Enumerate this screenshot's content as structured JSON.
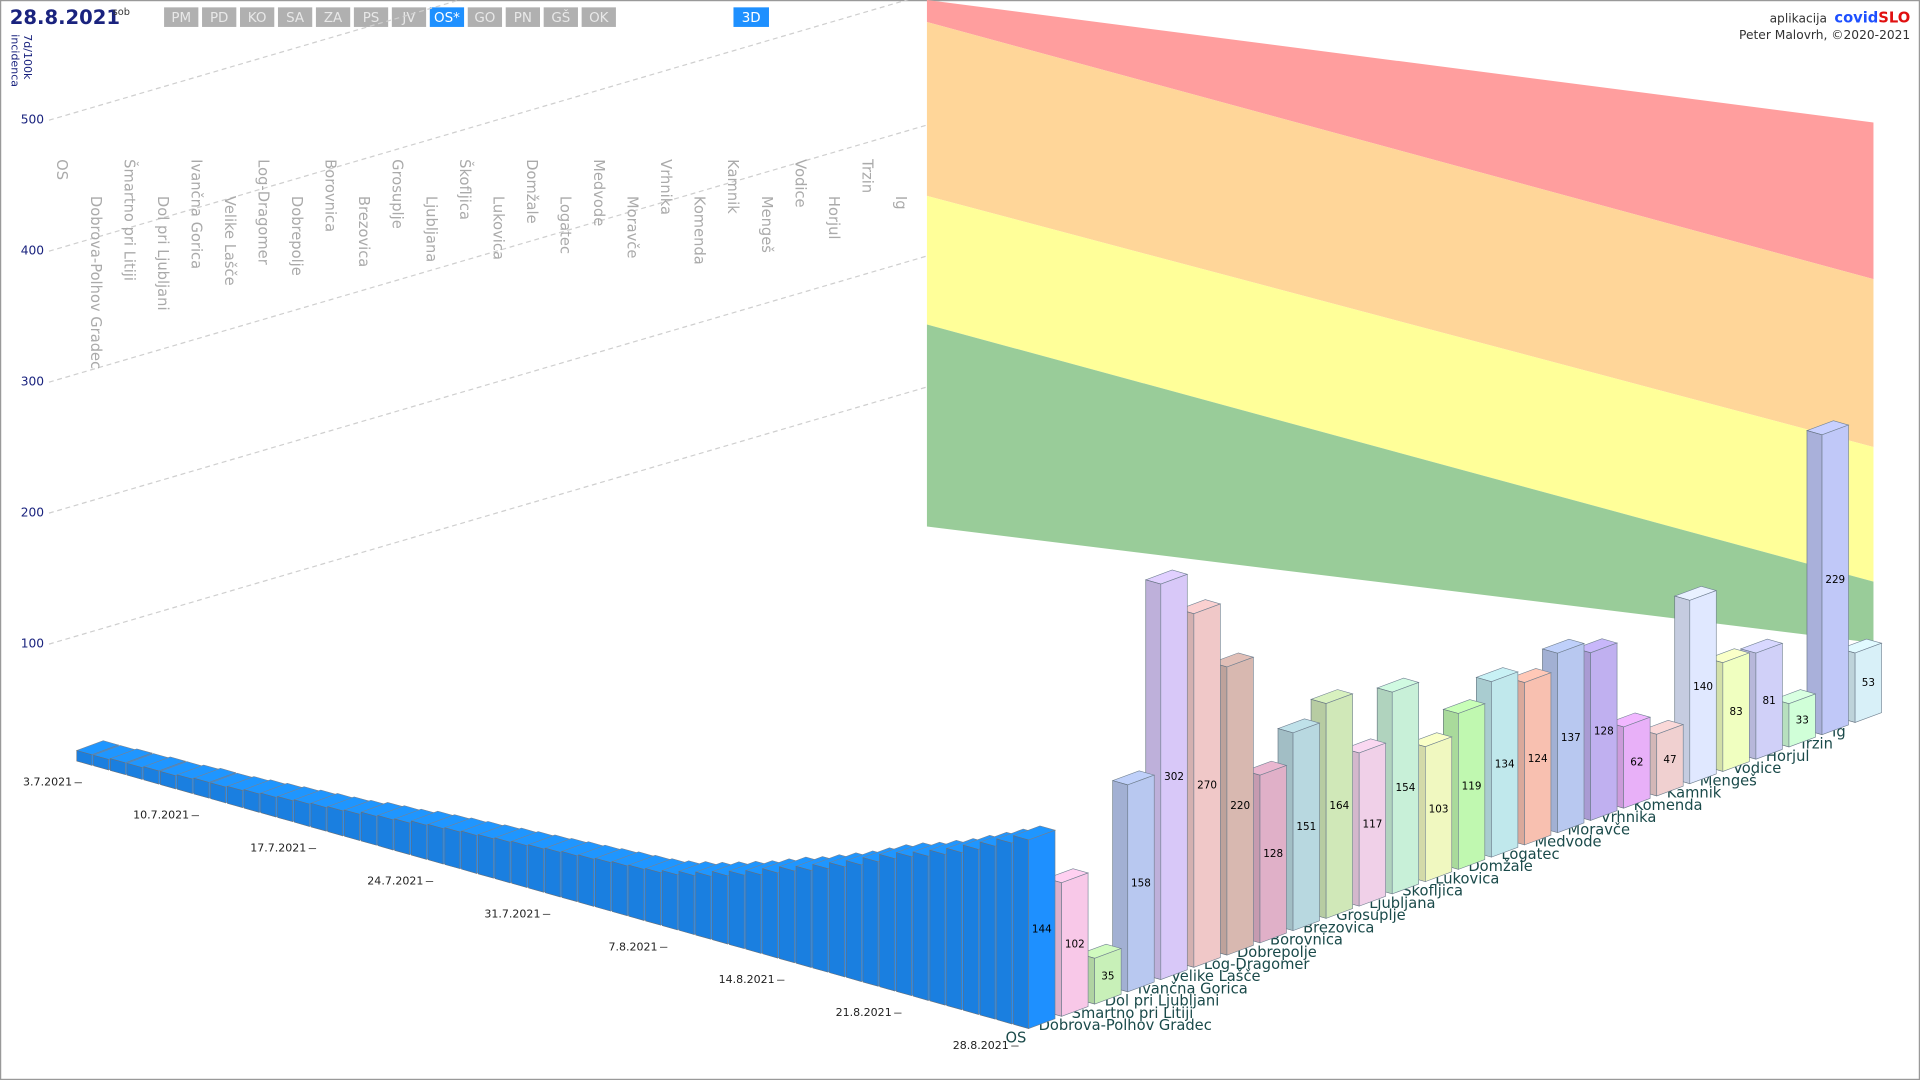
{
  "header": {
    "date": "28.8.2021",
    "weekday": "sob",
    "tabs": [
      "PM",
      "PD",
      "KO",
      "SA",
      "ZA",
      "PS",
      "JV",
      "OS*",
      "GO",
      "PN",
      "GŠ",
      "OK"
    ],
    "active_tab": "OS*",
    "mode": "3D"
  },
  "credits": {
    "app_label": "aplikacija",
    "brand_main": "covid",
    "brand_accent": "SLO",
    "author": "Peter Malovrh, ©2020-2021"
  },
  "chart_data": {
    "type": "bar3d",
    "y_label": [
      "7d/100k",
      "incidenca"
    ],
    "x": [
      "3.7.2021",
      null,
      null,
      null,
      null,
      null,
      null,
      "10.7.2021",
      null,
      null,
      null,
      null,
      null,
      null,
      "17.7.2021",
      null,
      null,
      null,
      null,
      null,
      null,
      "24.7.2021",
      null,
      null,
      null,
      null,
      null,
      null,
      "31.7.2021",
      null,
      null,
      null,
      null,
      null,
      null,
      "7.8.2021",
      null,
      null,
      null,
      null,
      null,
      null,
      "14.8.2021",
      null,
      null,
      null,
      null,
      null,
      null,
      "21.8.2021",
      null,
      null,
      null,
      null,
      null,
      null,
      "28.8.2021"
    ],
    "series": [
      {
        "name": "OS",
        "color": "#1e90ff",
        "values": [
          8,
          8,
          9,
          9,
          10,
          10,
          11,
          12,
          12,
          13,
          14,
          15,
          16,
          17,
          18,
          19,
          20,
          22,
          23,
          24,
          26,
          27,
          28,
          29,
          30,
          31,
          32,
          33,
          34,
          35,
          36,
          37,
          38,
          39,
          40,
          42,
          45,
          48,
          52,
          56,
          60,
          65,
          70,
          74,
          79,
          84,
          89,
          95,
          101,
          106,
          110,
          115,
          120,
          126,
          132,
          138,
          144
        ]
      }
    ],
    "categories": [
      "Dobrova-Polhov Gradec",
      "Šmartno pri Litiji",
      "Dol pri Ljubljani",
      "Ivančna Gorica",
      "Velike Lašče",
      "Log-Dragomer",
      "Dobrepolje",
      "Borovnica",
      "Brezovica",
      "Grosuplje",
      "Ljubljana",
      "Škofljica",
      "Lukovica",
      "Domžale",
      "Logatec",
      "Medvode",
      "Moravče",
      "Vrhnika",
      "Komenda",
      "Kamnik",
      "Mengeš",
      "Vodice",
      "Horjul",
      "Trzin",
      "Ig"
    ],
    "values": [
      102,
      35,
      158,
      302,
      270,
      220,
      128,
      151,
      164,
      117,
      154,
      103,
      119,
      134,
      124,
      137,
      128,
      62,
      47,
      140,
      83,
      81,
      33,
      229,
      53
    ],
    "colors": [
      "#f8c8e8",
      "#c8f0b8",
      "#b8c8f0",
      "#d8c8f8",
      "#f0c8c8",
      "#d8b8b0",
      "#e0b0c8",
      "#b8d8e0",
      "#d0e8b8",
      "#f0d0e8",
      "#c8f0d8",
      "#f0f8c0",
      "#c0f8b0",
      "#c0e8ec",
      "#f8c0b0",
      "#b8c8f0",
      "#c0b0f0",
      "#e8b0f8",
      "#f0d0d0",
      "#e0e8ff",
      "#f0ffc0",
      "#d0d0f8",
      "#d0ffd8",
      "#c0c8f8",
      "#d8f0f8"
    ],
    "ylim": [
      0,
      560
    ],
    "yticks": [
      100,
      200,
      300,
      400,
      500
    ],
    "grid": true
  }
}
